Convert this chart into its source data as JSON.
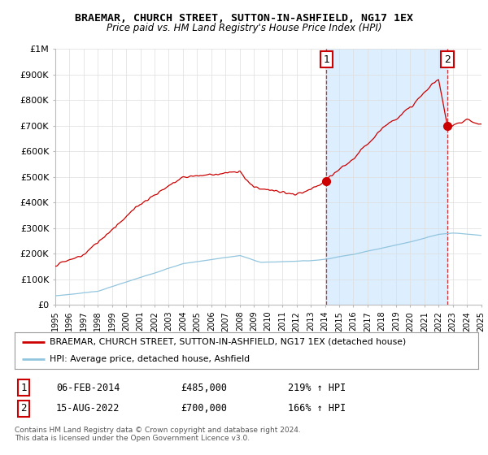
{
  "title": "BRAEMAR, CHURCH STREET, SUTTON-IN-ASHFIELD, NG17 1EX",
  "subtitle": "Price paid vs. HM Land Registry's House Price Index (HPI)",
  "legend_line1": "BRAEMAR, CHURCH STREET, SUTTON-IN-ASHFIELD, NG17 1EX (detached house)",
  "legend_line2": "HPI: Average price, detached house, Ashfield",
  "annotation1_label": "1",
  "annotation1_date": "06-FEB-2014",
  "annotation1_price": "£485,000",
  "annotation1_hpi": "219% ↑ HPI",
  "annotation2_label": "2",
  "annotation2_date": "15-AUG-2022",
  "annotation2_price": "£700,000",
  "annotation2_hpi": "166% ↑ HPI",
  "footnote": "Contains HM Land Registry data © Crown copyright and database right 2024.\nThis data is licensed under the Open Government Licence v3.0.",
  "hpi_color": "#92c5de",
  "price_color": "#cc0000",
  "sale1_x": 2014.1,
  "sale1_y": 485000,
  "sale2_x": 2022.62,
  "sale2_y": 700000,
  "vline1_x": 2014.1,
  "vline2_x": 2022.62,
  "xmin": 1995,
  "xmax": 2025,
  "ymin": 0,
  "ymax": 1000000,
  "yticks": [
    0,
    100000,
    200000,
    300000,
    400000,
    500000,
    600000,
    700000,
    800000,
    900000,
    1000000
  ],
  "ytick_labels": [
    "£0",
    "£100K",
    "£200K",
    "£300K",
    "£400K",
    "£500K",
    "£600K",
    "£700K",
    "£800K",
    "£900K",
    "£1M"
  ],
  "xticks": [
    1995,
    1996,
    1997,
    1998,
    1999,
    2000,
    2001,
    2002,
    2003,
    2004,
    2005,
    2006,
    2007,
    2008,
    2009,
    2010,
    2011,
    2012,
    2013,
    2014,
    2015,
    2016,
    2017,
    2018,
    2019,
    2020,
    2021,
    2022,
    2023,
    2024,
    2025
  ],
  "xtick_labels": [
    "1995",
    "1996",
    "1997",
    "1998",
    "1999",
    "2000",
    "2001",
    "2002",
    "2003",
    "2004",
    "2005",
    "2006",
    "2007",
    "2008",
    "2009",
    "2010",
    "2011",
    "2012",
    "2013",
    "2014",
    "2015",
    "2016",
    "2017",
    "2018",
    "2019",
    "2020",
    "2021",
    "2022",
    "2023",
    "2024",
    "2025"
  ],
  "background_color": "#ffffff",
  "grid_color": "#dddddd",
  "span_color": "#ddeeff"
}
